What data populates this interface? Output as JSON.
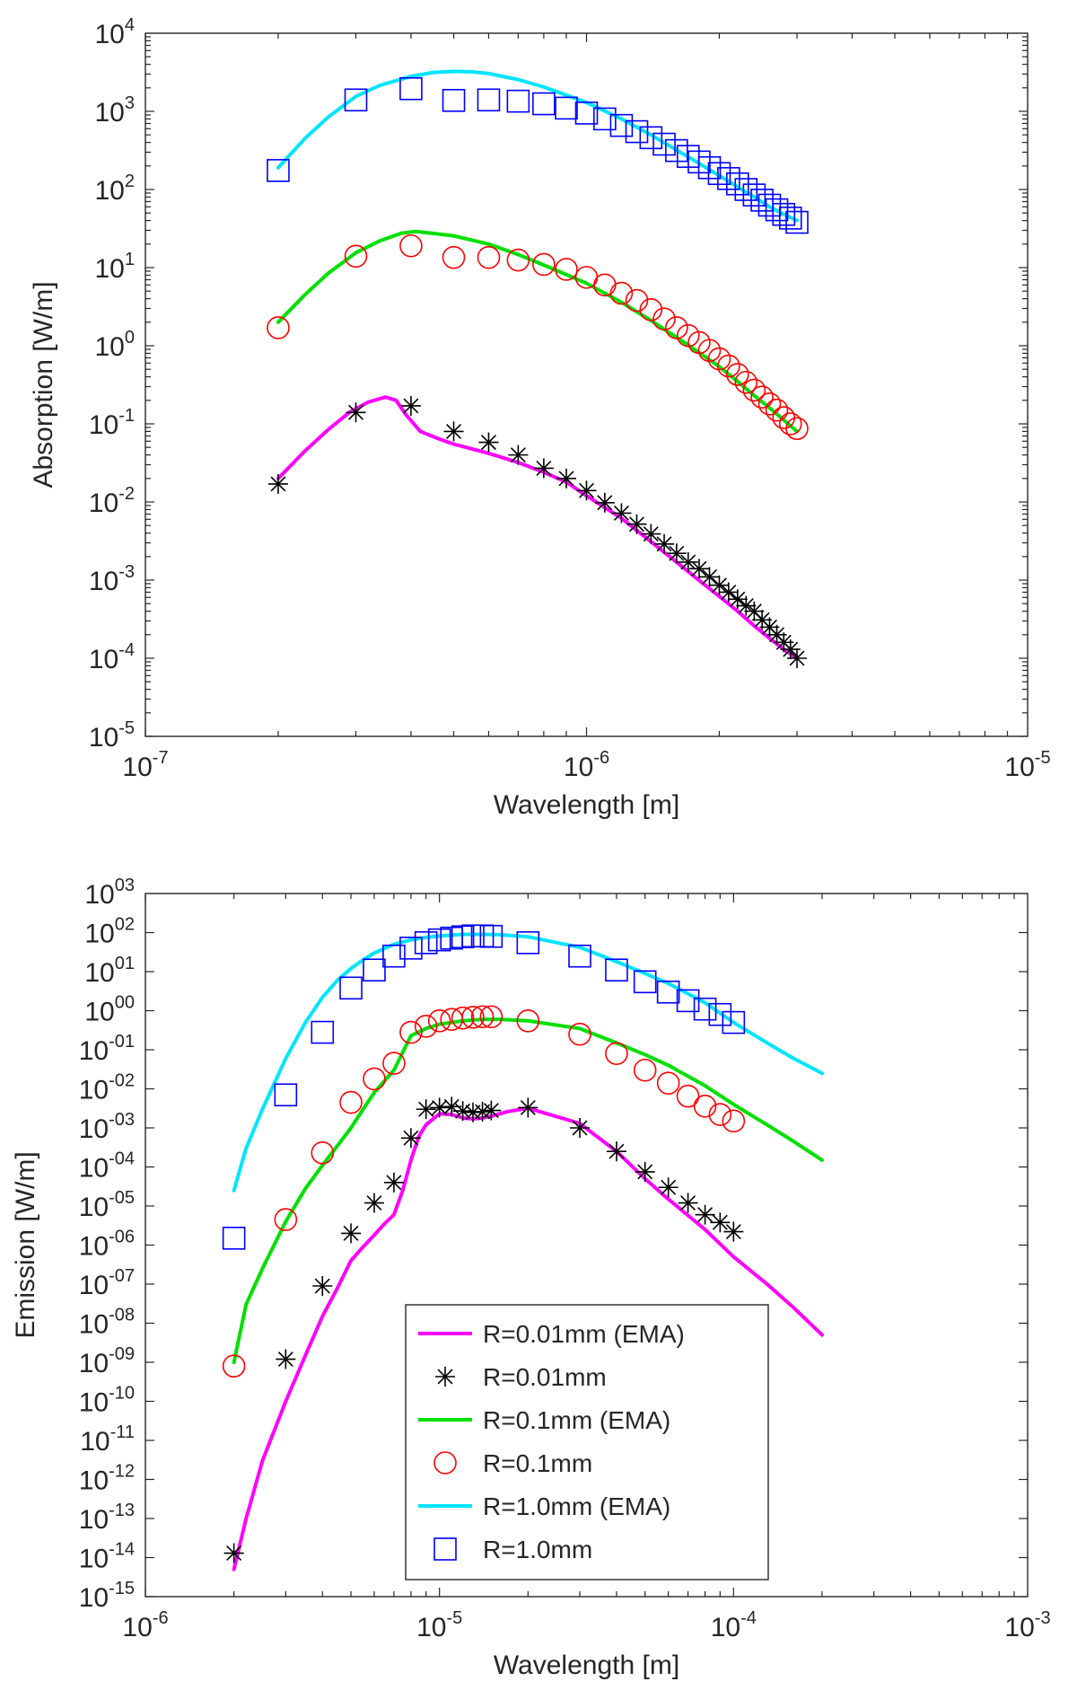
{
  "chart_data": [
    {
      "type": "line",
      "title": "",
      "xlabel": "Wavelength [m]",
      "ylabel": "Absorption [W/m]",
      "xscale": "log",
      "yscale": "log",
      "xlim": [
        1e-07,
        1e-05
      ],
      "ylim": [
        1e-05,
        10000.0
      ],
      "x_tick_labels": [
        {
          "value": 1e-07,
          "base": "10",
          "exp": "-7"
        },
        {
          "value": 1e-06,
          "base": "10",
          "exp": "-6"
        },
        {
          "value": 1e-05,
          "base": "10",
          "exp": "-5"
        }
      ],
      "y_tick_labels": [
        {
          "value": 10000.0,
          "base": "10",
          "exp": "4"
        },
        {
          "value": 1000.0,
          "base": "10",
          "exp": "3"
        },
        {
          "value": 100.0,
          "base": "10",
          "exp": "2"
        },
        {
          "value": 10.0,
          "base": "10",
          "exp": "1"
        },
        {
          "value": 1.0,
          "base": "10",
          "exp": "0"
        },
        {
          "value": 0.1,
          "base": "10",
          "exp": "-1"
        },
        {
          "value": 0.01,
          "base": "10",
          "exp": "-2"
        },
        {
          "value": 0.001,
          "base": "10",
          "exp": "-3"
        },
        {
          "value": 0.0001,
          "base": "10",
          "exp": "-4"
        },
        {
          "value": 1e-05,
          "base": "10",
          "exp": "-5"
        }
      ],
      "series": [
        {
          "name": "R=0.01mm (EMA)",
          "kind": "line",
          "color": "#ff00ff",
          "x": [
            2e-07,
            2.3e-07,
            2.6e-07,
            2.9e-07,
            3.2e-07,
            3.5e-07,
            3.7e-07,
            3.9e-07,
            4.2e-07,
            4.6e-07,
            5e-07,
            6e-07,
            7e-07,
            8e-07,
            9e-07,
            1e-06,
            1.2e-06,
            1.4e-06,
            1.6e-06,
            1.8e-06,
            2e-06,
            2.2e-06,
            2.4e-06,
            2.6e-06,
            2.8e-06,
            3e-06
          ],
          "y": [
            0.02,
            0.045,
            0.085,
            0.14,
            0.19,
            0.22,
            0.2,
            0.13,
            0.08,
            0.065,
            0.055,
            0.042,
            0.032,
            0.024,
            0.018,
            0.012,
            0.0062,
            0.0031,
            0.0017,
            0.00099,
            0.00062,
            0.0004,
            0.00026,
            0.00018,
            0.00013,
            0.0001
          ]
        },
        {
          "name": "R=0.01mm",
          "kind": "marker",
          "marker": "star",
          "color": "#000000",
          "x": [
            2e-07,
            3e-07,
            4e-07,
            5e-07,
            6e-07,
            7e-07,
            8e-07,
            9e-07,
            1e-06,
            1.1e-06,
            1.2e-06,
            1.3e-06,
            1.4e-06,
            1.5e-06,
            1.6e-06,
            1.7e-06,
            1.8e-06,
            1.9e-06,
            2e-06,
            2.1e-06,
            2.2e-06,
            2.3e-06,
            2.4e-06,
            2.5e-06,
            2.6e-06,
            2.7e-06,
            2.8e-06,
            2.9e-06,
            3e-06
          ],
          "y": [
            0.017,
            0.14,
            0.17,
            0.08,
            0.058,
            0.04,
            0.027,
            0.02,
            0.014,
            0.0098,
            0.0072,
            0.0052,
            0.0039,
            0.0029,
            0.0022,
            0.0017,
            0.0014,
            0.0011,
            0.00086,
            0.0007,
            0.00057,
            0.00047,
            0.0004,
            0.00031,
            0.00025,
            0.0002,
            0.00016,
            0.00013,
            0.0001
          ]
        },
        {
          "name": "R=0.1mm (EMA)",
          "kind": "line",
          "color": "#00e000",
          "x": [
            2e-07,
            2.3e-07,
            2.6e-07,
            3e-07,
            3.4e-07,
            3.8e-07,
            4.1e-07,
            4.6e-07,
            5e-07,
            6e-07,
            7e-07,
            8e-07,
            1e-06,
            1.2e-06,
            1.4e-06,
            1.6e-06,
            1.8e-06,
            2e-06,
            2.2e-06,
            2.4e-06,
            2.6e-06,
            2.8e-06,
            3e-06
          ],
          "y": [
            2.0,
            4.5,
            8.5,
            15.5,
            22,
            27.5,
            29,
            27,
            25.5,
            20,
            14.7,
            10.8,
            6.3,
            3.6,
            2.1,
            1.28,
            0.82,
            0.54,
            0.35,
            0.23,
            0.16,
            0.112,
            0.08
          ]
        },
        {
          "name": "R=0.1mm",
          "kind": "marker",
          "marker": "circle",
          "color": "#ff0000",
          "x": [
            2e-07,
            3e-07,
            4e-07,
            5e-07,
            6e-07,
            7e-07,
            8e-07,
            9e-07,
            1e-06,
            1.1e-06,
            1.2e-06,
            1.3e-06,
            1.4e-06,
            1.5e-06,
            1.6e-06,
            1.7e-06,
            1.8e-06,
            1.9e-06,
            2e-06,
            2.1e-06,
            2.2e-06,
            2.3e-06,
            2.4e-06,
            2.5e-06,
            2.6e-06,
            2.7e-06,
            2.8e-06,
            2.9e-06,
            3e-06
          ],
          "y": [
            1.7,
            14,
            19,
            13.5,
            13.5,
            12.5,
            11,
            9.5,
            7.5,
            6.0,
            4.7,
            3.8,
            2.9,
            2.2,
            1.7,
            1.35,
            1.1,
            0.87,
            0.68,
            0.55,
            0.43,
            0.34,
            0.27,
            0.22,
            0.18,
            0.15,
            0.12,
            0.1,
            0.087
          ]
        },
        {
          "name": "R=1.0mm (EMA)",
          "kind": "line",
          "color": "#00e5ff",
          "x": [
            2e-07,
            2.3e-07,
            2.6e-07,
            3e-07,
            3.4e-07,
            4e-07,
            4.5e-07,
            5e-07,
            5.5e-07,
            6e-07,
            7e-07,
            8e-07,
            1e-06,
            1.2e-06,
            1.4e-06,
            1.6e-06,
            1.8e-06,
            2e-06,
            2.2e-06,
            2.4e-06,
            2.6e-06,
            2.8e-06,
            3e-06
          ],
          "y": [
            190,
            450,
            850,
            1550,
            2150,
            2800,
            3150,
            3250,
            3200,
            3050,
            2550,
            2050,
            1300,
            800,
            500,
            320,
            215,
            150,
            108,
            80,
            60,
            48,
            40
          ]
        },
        {
          "name": "R=1.0mm",
          "kind": "marker",
          "marker": "square",
          "color": "#0000ff",
          "x": [
            2e-07,
            3e-07,
            4e-07,
            5e-07,
            6e-07,
            7e-07,
            8e-07,
            9e-07,
            1e-06,
            1.1e-06,
            1.2e-06,
            1.3e-06,
            1.4e-06,
            1.5e-06,
            1.6e-06,
            1.7e-06,
            1.8e-06,
            1.9e-06,
            2e-06,
            2.1e-06,
            2.2e-06,
            2.3e-06,
            2.4e-06,
            2.5e-06,
            2.6e-06,
            2.7e-06,
            2.8e-06,
            2.9e-06,
            3e-06
          ],
          "y": [
            175,
            1400,
            1950,
            1380,
            1400,
            1350,
            1250,
            1100,
            950,
            800,
            660,
            550,
            460,
            380,
            315,
            265,
            225,
            190,
            160,
            138,
            118,
            100,
            85,
            73,
            63,
            55,
            48,
            43,
            38
          ]
        }
      ]
    },
    {
      "type": "line",
      "title": "",
      "xlabel": "Wavelength [m]",
      "ylabel": "Emission [W/m]",
      "xscale": "log",
      "yscale": "log",
      "xlim": [
        1e-06,
        0.001
      ],
      "ylim": [
        1e-15,
        1000.0
      ],
      "legend_position": "bottom-center",
      "x_tick_labels": [
        {
          "value": 1e-06,
          "base": "10",
          "exp": "-6"
        },
        {
          "value": 1e-05,
          "base": "10",
          "exp": "-5"
        },
        {
          "value": 0.0001,
          "base": "10",
          "exp": "-4"
        },
        {
          "value": 0.001,
          "base": "10",
          "exp": "-3"
        }
      ],
      "y_tick_labels": [
        {
          "value": 1000.0,
          "base": "10",
          "exp": "03"
        },
        {
          "value": 100.0,
          "base": "10",
          "exp": "02"
        },
        {
          "value": 10.0,
          "base": "10",
          "exp": "01"
        },
        {
          "value": 1.0,
          "base": "10",
          "exp": "00"
        },
        {
          "value": 0.1,
          "base": "10",
          "exp": "-01"
        },
        {
          "value": 0.01,
          "base": "10",
          "exp": "-02"
        },
        {
          "value": 0.001,
          "base": "10",
          "exp": "-03"
        },
        {
          "value": 0.0001,
          "base": "10",
          "exp": "-04"
        },
        {
          "value": 1e-05,
          "base": "10",
          "exp": "-05"
        },
        {
          "value": 1e-06,
          "base": "10",
          "exp": "-06"
        },
        {
          "value": 1e-07,
          "base": "10",
          "exp": "-07"
        },
        {
          "value": 1e-08,
          "base": "10",
          "exp": "-08"
        },
        {
          "value": 1e-09,
          "base": "10",
          "exp": "-09"
        },
        {
          "value": 1e-10,
          "base": "10",
          "exp": "-10"
        },
        {
          "value": 1e-11,
          "base": "10",
          "exp": "-11"
        },
        {
          "value": 1e-12,
          "base": "10",
          "exp": "-12"
        },
        {
          "value": 1e-13,
          "base": "10",
          "exp": "-13"
        },
        {
          "value": 1e-14,
          "base": "10",
          "exp": "-14"
        },
        {
          "value": 1e-15,
          "base": "10",
          "exp": "-15"
        }
      ],
      "series": [
        {
          "name": "R=0.01mm (EMA)",
          "kind": "line",
          "color": "#ff00ff",
          "x": [
            2e-06,
            2.2e-06,
            2.5e-06,
            3e-06,
            3.5e-06,
            4e-06,
            4.5e-06,
            5e-06,
            5.5e-06,
            6e-06,
            6.5e-06,
            7e-06,
            7.5e-06,
            8e-06,
            8.5e-06,
            9e-06,
            1e-05,
            1.1e-05,
            1.2e-05,
            1.3e-05,
            1.4e-05,
            1.5e-05,
            1.7e-05,
            2e-05,
            3e-05,
            4e-05,
            5e-05,
            6e-05,
            8e-05,
            0.0001,
            0.00013,
            0.00016,
            0.0002
          ],
          "y": [
            5e-15,
            1e-13,
            3e-12,
            1e-10,
            1.5e-09,
            1.5e-08,
            8e-08,
            4e-07,
            9e-07,
            1.8e-06,
            3.5e-06,
            6e-06,
            2.5e-05,
            0.00015,
            0.0006,
            0.0012,
            0.0023,
            0.0022,
            0.0018,
            0.0017,
            0.0018,
            0.002,
            0.0026,
            0.0032,
            0.0013,
            0.00025,
            5e-05,
            1.5e-05,
            2.5e-06,
            5e-07,
            1e-07,
            2.5e-08,
            5e-09
          ]
        },
        {
          "name": "R=0.01mm",
          "kind": "marker",
          "marker": "star",
          "color": "#000000",
          "x": [
            2e-06,
            3e-06,
            4e-06,
            5e-06,
            6e-06,
            7e-06,
            8e-06,
            9e-06,
            1e-05,
            1.1e-05,
            1.2e-05,
            1.3e-05,
            1.4e-05,
            1.5e-05,
            2e-05,
            3e-05,
            4e-05,
            5e-05,
            6e-05,
            7e-05,
            8e-05,
            9e-05,
            0.0001
          ],
          "y": [
            1.3e-14,
            1.2e-09,
            9e-08,
            2e-06,
            1.2e-05,
            4e-05,
            0.00055,
            0.003,
            0.0033,
            0.0035,
            0.0027,
            0.0025,
            0.0026,
            0.0028,
            0.0033,
            0.001,
            0.00025,
            7.5e-05,
            3e-05,
            1.2e-05,
            6e-06,
            3.8e-06,
            2.2e-06
          ]
        },
        {
          "name": "R=0.1mm (EMA)",
          "kind": "line",
          "color": "#00e000",
          "x": [
            2e-06,
            2.2e-06,
            2.5e-06,
            3e-06,
            3.5e-06,
            4e-06,
            4.5e-06,
            5e-06,
            5.5e-06,
            6e-06,
            7e-06,
            8e-06,
            9e-06,
            1e-05,
            1.2e-05,
            1.4e-05,
            1.6e-05,
            2e-05,
            3e-05,
            4e-05,
            5e-05,
            6e-05,
            8e-05,
            0.0001,
            0.00013,
            0.00016,
            0.0002
          ],
          "y": [
            1e-09,
            3e-08,
            2.5e-07,
            4e-06,
            2.8e-05,
            0.00011,
            0.00035,
            0.001,
            0.003,
            0.008,
            0.03,
            0.23,
            0.35,
            0.45,
            0.55,
            0.6,
            0.6,
            0.55,
            0.35,
            0.15,
            0.075,
            0.04,
            0.012,
            0.004,
            0.0012,
            0.00045,
            0.00015
          ]
        },
        {
          "name": "R=0.1mm",
          "kind": "marker",
          "marker": "circle",
          "color": "#ff0000",
          "x": [
            2e-06,
            3e-06,
            4e-06,
            5e-06,
            6e-06,
            7e-06,
            8e-06,
            9e-06,
            1e-05,
            1.1e-05,
            1.2e-05,
            1.3e-05,
            1.4e-05,
            1.5e-05,
            2e-05,
            3e-05,
            4e-05,
            5e-05,
            6e-05,
            7e-05,
            8e-05,
            9e-05,
            0.0001
          ],
          "y": [
            8e-10,
            4.5e-06,
            0.00023,
            0.0045,
            0.018,
            0.045,
            0.28,
            0.4,
            0.55,
            0.6,
            0.65,
            0.68,
            0.7,
            0.7,
            0.55,
            0.25,
            0.08,
            0.03,
            0.014,
            0.0065,
            0.0036,
            0.0022,
            0.0015
          ]
        },
        {
          "name": "R=1.0mm (EMA)",
          "kind": "line",
          "color": "#00e5ff",
          "x": [
            2e-06,
            2.2e-06,
            2.5e-06,
            3e-06,
            3.5e-06,
            4e-06,
            4.5e-06,
            5e-06,
            5.5e-06,
            6e-06,
            7e-06,
            8e-06,
            9e-06,
            1e-05,
            1.2e-05,
            1.4e-05,
            1.6e-05,
            2e-05,
            3e-05,
            4e-05,
            5e-05,
            6e-05,
            8e-05,
            0.0001,
            0.00013,
            0.00016,
            0.0002
          ],
          "y": [
            2.5e-05,
            0.0003,
            0.003,
            0.06,
            0.5,
            2.2,
            6,
            12,
            20,
            30,
            50,
            65,
            75,
            82,
            90,
            90,
            88,
            78,
            42,
            18,
            9,
            5,
            1.6,
            0.5,
            0.15,
            0.06,
            0.025
          ]
        },
        {
          "name": "R=1.0mm",
          "kind": "marker",
          "marker": "square",
          "color": "#0000ff",
          "x": [
            2e-06,
            3e-06,
            4e-06,
            5e-06,
            6e-06,
            7e-06,
            8e-06,
            9e-06,
            1e-05,
            1.1e-05,
            1.2e-05,
            1.3e-05,
            1.4e-05,
            1.5e-05,
            2e-05,
            3e-05,
            4e-05,
            5e-05,
            6e-05,
            7e-05,
            8e-05,
            9e-05,
            0.0001
          ],
          "y": [
            1.5e-06,
            0.007,
            0.28,
            3.8,
            11,
            25,
            40,
            55,
            65,
            72,
            78,
            82,
            82,
            80,
            55,
            25,
            11,
            5.5,
            3,
            1.8,
            1.1,
            0.8,
            0.5
          ]
        }
      ],
      "legend": [
        {
          "label": "R=0.01mm (EMA)",
          "kind": "line",
          "color": "#ff00ff"
        },
        {
          "label": "R=0.01mm",
          "kind": "marker",
          "marker": "star",
          "color": "#000000"
        },
        {
          "label": "R=0.1mm (EMA)",
          "kind": "line",
          "color": "#00e000"
        },
        {
          "label": "R=0.1mm",
          "kind": "marker",
          "marker": "circle",
          "color": "#ff0000"
        },
        {
          "label": "R=1.0mm (EMA)",
          "kind": "line",
          "color": "#00e5ff"
        },
        {
          "label": "R=1.0mm",
          "kind": "marker",
          "marker": "square",
          "color": "#0000ff"
        }
      ]
    }
  ]
}
